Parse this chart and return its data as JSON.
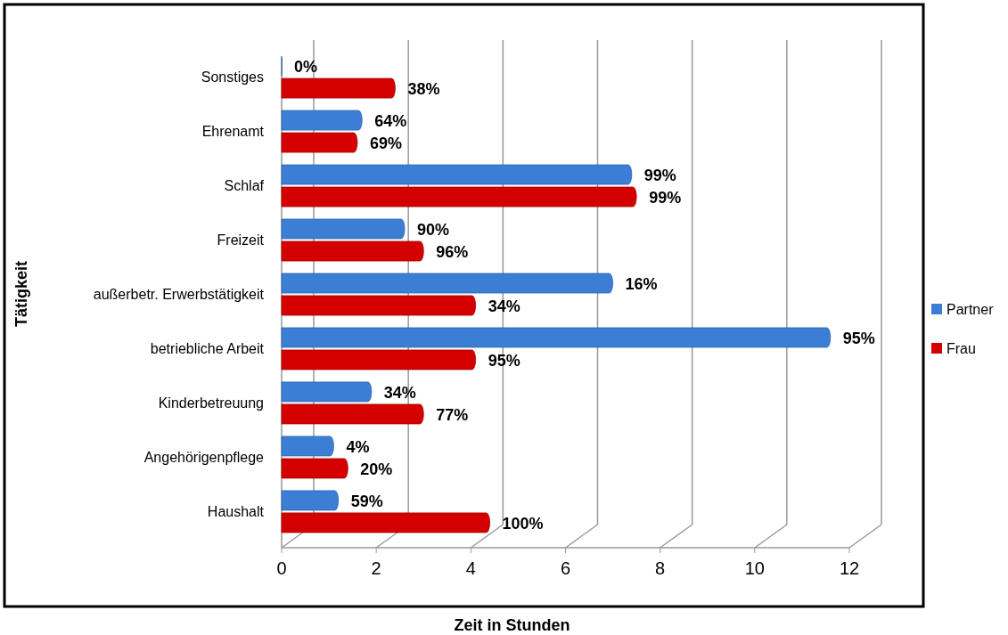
{
  "chart_data": {
    "type": "bar",
    "orientation": "horizontal",
    "xlabel": "Zeit in Stunden",
    "ylabel": "Tätigkeit",
    "categories": [
      "Sonstiges",
      "Ehrenamt",
      "Schlaf",
      "Freizeit",
      "außerbetr. Erwerbstätigkeit",
      "betriebliche Arbeit",
      "Kinderbetreuung",
      "Angehörigenpflege",
      "Haushalt"
    ],
    "series": [
      {
        "name": "Partner",
        "color": "#3a7fd5",
        "values": [
          0,
          1.7,
          7.4,
          2.6,
          7.0,
          11.6,
          1.9,
          1.1,
          1.2
        ]
      },
      {
        "name": "Frau",
        "color": "#d40000",
        "values": [
          2.4,
          1.6,
          7.5,
          3.0,
          4.1,
          4.1,
          3.0,
          1.4,
          4.4
        ]
      }
    ],
    "annotations": [
      {
        "text": "0%",
        "x": 0,
        "y": "Sonstiges"
      },
      {
        "text": "64%",
        "x": 1.7,
        "y": "Ehrenamt"
      },
      {
        "text": "99%",
        "x": 7.4,
        "y": "Schlaf"
      },
      {
        "text": "90%",
        "x": 2.6,
        "y": "Freizeit"
      },
      {
        "text": "16%",
        "x": 7.0,
        "y": "außerbetr. Erwerbstätigkeit"
      },
      {
        "text": "95%",
        "x": 11.6,
        "y": "betriebliche Arbeit"
      },
      {
        "text": "34%",
        "x": 1.9,
        "y": "Kinderbetreuung"
      },
      {
        "text": "4%",
        "x": 1.1,
        "y": "Angehörigenpflege"
      },
      {
        "text": "59%",
        "x": 1.2,
        "y": "Haushalt"
      },
      {
        "text": "38%",
        "x": 2.4,
        "y": "Sonstiges"
      },
      {
        "text": "69%",
        "x": 1.6,
        "y": "Ehrenamt"
      },
      {
        "text": "99%",
        "x": 7.5,
        "y": "Schlaf"
      },
      {
        "text": "96%",
        "x": 3.0,
        "y": "Freizeit"
      },
      {
        "text": "34%",
        "x": 4.1,
        "y": "außerbetr. Erwerbstätigkeit"
      },
      {
        "text": "95%",
        "x": 4.1,
        "y": "betriebliche Arbeit"
      },
      {
        "text": "77%",
        "x": 3.0,
        "y": "Kinderbetreuung"
      },
      {
        "text": "20%",
        "x": 1.4,
        "y": "Angehörigenpflege"
      },
      {
        "text": "100%",
        "x": 4.4,
        "y": "Haushalt"
      }
    ],
    "xlim": [
      0,
      12
    ],
    "xticks": [
      0,
      2,
      4,
      6,
      8,
      10,
      12
    ],
    "grid": "x",
    "legend": "right"
  }
}
